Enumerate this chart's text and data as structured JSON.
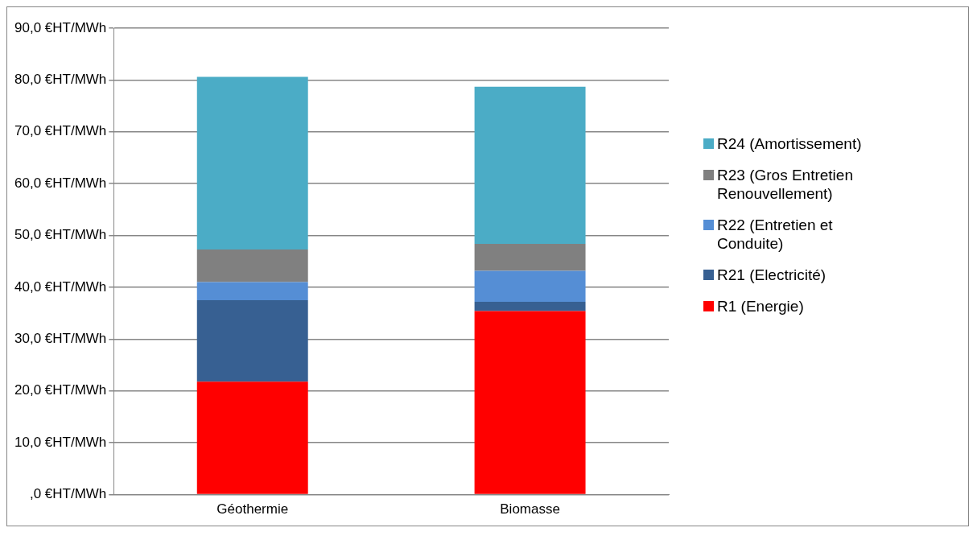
{
  "chart_data": {
    "type": "bar",
    "stacked": true,
    "categories": [
      "Géothermie",
      "Biomasse"
    ],
    "series": [
      {
        "name": "R1 (Energie)",
        "color": "#ff0000",
        "values": [
          21.8,
          35.4
        ]
      },
      {
        "name": "R21 (Electricité)",
        "color": "#376092",
        "values": [
          15.7,
          1.8
        ]
      },
      {
        "name": "R22 (Entretien et Conduite)",
        "color": "#558ed5",
        "values": [
          3.5,
          6.0
        ]
      },
      {
        "name": "R23 (Gros Entretien Renouvellement)",
        "color": "#808080",
        "values": [
          6.3,
          5.2
        ]
      },
      {
        "name": "R24 (Amortissement)",
        "color": "#4bacc6",
        "values": [
          33.3,
          30.3
        ]
      }
    ],
    "ylim": [
      0,
      90
    ],
    "yticks": [
      {
        "value": 0,
        "label": ",0 €HT/MWh"
      },
      {
        "value": 10,
        "label": "10,0 €HT/MWh"
      },
      {
        "value": 20,
        "label": "20,0 €HT/MWh"
      },
      {
        "value": 30,
        "label": "30,0 €HT/MWh"
      },
      {
        "value": 40,
        "label": "40,0 €HT/MWh"
      },
      {
        "value": 50,
        "label": "50,0 €HT/MWh"
      },
      {
        "value": 60,
        "label": "60,0 €HT/MWh"
      },
      {
        "value": 70,
        "label": "70,0 €HT/MWh"
      },
      {
        "value": 80,
        "label": "80,0 €HT/MWh"
      },
      {
        "value": 90,
        "label": "90,0 €HT/MWh"
      }
    ],
    "grid": "y",
    "legend": "right"
  }
}
